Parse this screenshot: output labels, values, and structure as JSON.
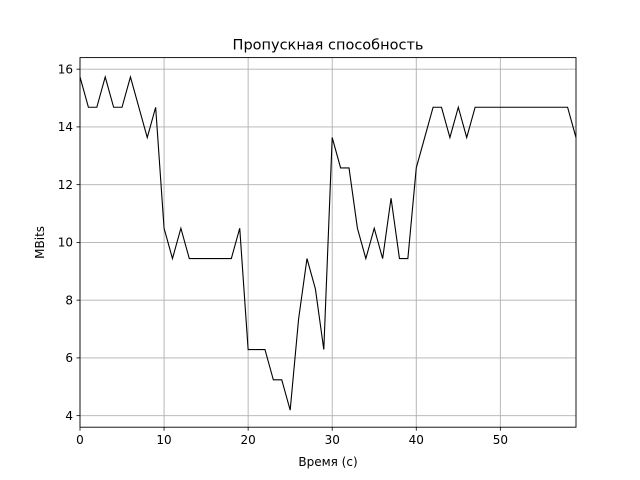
{
  "chart_data": {
    "type": "line",
    "title": "Пропускная способность",
    "xlabel": "Время (с)",
    "ylabel": "MBits",
    "xlim": [
      0,
      59
    ],
    "ylim": [
      3.6,
      16.4
    ],
    "xticks": [
      0,
      10,
      20,
      30,
      40,
      50
    ],
    "yticks": [
      4,
      6,
      8,
      10,
      12,
      14,
      16
    ],
    "grid": true,
    "colors": {
      "line": "#000000",
      "grid": "#b0b0b0"
    },
    "series": [
      {
        "x": [
          0,
          1,
          2,
          3,
          4,
          5,
          6,
          7,
          8,
          9,
          10,
          11,
          12,
          13,
          14,
          15,
          16,
          17,
          18,
          19,
          20,
          21,
          22,
          23,
          24,
          25,
          26,
          27,
          28,
          29,
          30,
          31,
          32,
          33,
          34,
          35,
          36,
          37,
          38,
          39,
          40,
          41,
          42,
          43,
          44,
          45,
          46,
          47,
          48,
          49,
          50,
          51,
          52,
          53,
          54,
          55,
          56,
          57,
          58,
          59
        ],
        "values": [
          15.73,
          14.68,
          14.68,
          15.73,
          14.68,
          14.68,
          15.73,
          14.68,
          13.63,
          14.68,
          10.49,
          9.44,
          10.49,
          9.44,
          9.44,
          9.44,
          9.44,
          9.44,
          9.44,
          10.49,
          6.29,
          6.29,
          6.29,
          5.24,
          5.24,
          4.19,
          7.34,
          9.44,
          8.39,
          6.29,
          13.63,
          12.58,
          12.58,
          10.49,
          9.44,
          10.49,
          9.44,
          11.53,
          9.44,
          9.44,
          12.58,
          13.63,
          14.68,
          14.68,
          13.63,
          14.68,
          13.63,
          14.68,
          14.68,
          14.68,
          14.68,
          14.68,
          14.68,
          14.68,
          14.68,
          14.68,
          14.68,
          14.68,
          14.68,
          13.63
        ]
      }
    ]
  }
}
